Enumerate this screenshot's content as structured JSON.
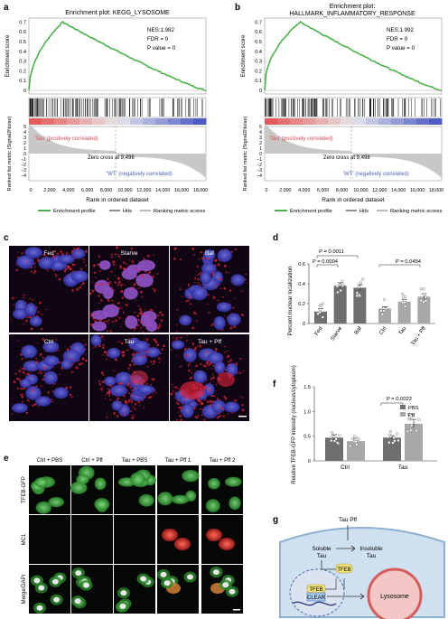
{
  "panel_a": {
    "letter": "a",
    "title": "Enrichment plot: KEGG_LYSOSOME",
    "stats": [
      "NES:1.982",
      "FDR = 0",
      "P value = 0"
    ],
    "ylabel_top": "Enrichment score",
    "ylabel_bottom": "Ranked list metric (Signal2Noise)",
    "yticks_top": [
      "0.7",
      "0.6",
      "0.5",
      "0.4",
      "0.3",
      "0.2",
      "0.1",
      "0"
    ],
    "yticks_bottom": [
      "5",
      "4",
      "3",
      "2",
      "1",
      "0",
      "−1",
      "−2",
      "−3",
      "−4"
    ],
    "pos_label": "'Tau' (positively correlated)",
    "neg_label": "'WT' (negatively correlated)",
    "zero_cross": "Zero cross at 9,498",
    "xticks": [
      "0",
      "2,000",
      "4,000",
      "6,000",
      "8,000",
      "10,000",
      "12,000",
      "14,000",
      "16,000",
      "18,000"
    ],
    "xlabel": "Rank in ordered dataset",
    "legend": [
      "Enrichment profile",
      "Hits",
      "Ranking metric scores"
    ]
  },
  "panel_b": {
    "letter": "b",
    "title_line1": "Enrichment plot:",
    "title_line2": "HALLMARK_INFLAMMATORY_RESPONSE",
    "stats": [
      "NES:1.992",
      "FDR = 0",
      "P value = 0"
    ],
    "ylabel_top": "Enrichment score",
    "ylabel_bottom": "Ranked list metric (Signal2Noise)",
    "yticks_top": [
      "0.7",
      "0.6",
      "0.5",
      "0.4",
      "0.3",
      "0.2",
      "0.1",
      "0"
    ],
    "yticks_bottom": [
      "5",
      "4",
      "3",
      "2",
      "1",
      "0",
      "−1",
      "−2",
      "−3",
      "−4"
    ],
    "pos_label": "'Tau' (positively correlated)",
    "neg_label": "'WT' (negatively correlated)",
    "zero_cross": "Zero cross at 9,498",
    "xticks": [
      "0",
      "2,000",
      "4,000",
      "6,000",
      "8,000",
      "10,000",
      "12,000",
      "14,000",
      "16,000",
      "18,000"
    ],
    "xlabel": "Rank in ordered dataset",
    "legend": [
      "Enrichment profile",
      "Hits",
      "Ranking metric scores"
    ]
  },
  "panel_c": {
    "letter": "c",
    "labels": [
      "Fed",
      "Starve",
      "Baf",
      "Ctrl",
      "Tau",
      "Tau + Pff"
    ]
  },
  "panel_d": {
    "letter": "d",
    "ylabel": "Percent nuclear localization",
    "pvals": [
      "P = 0.0011",
      "P = 0.0004",
      "P = 0.0454"
    ],
    "colors": {
      "dark": "#6f6f6f",
      "light": "#a8a8a8"
    }
  },
  "panel_e": {
    "letter": "e",
    "columns": [
      "Ctrl + PBS",
      "Ctrl + Pff",
      "Tau + PBS",
      "Tau + Pff 1",
      "Tau + Pff 2"
    ],
    "rows": [
      "TFEB-GFP",
      "MC1",
      "Merge/DAPI"
    ]
  },
  "panel_f": {
    "letter": "f",
    "ylabel": "Relative TFEB-GFP intensity (nucleus/cytoplasm)",
    "pval": "P = 0.0022",
    "legend": [
      "PBS",
      "Pff"
    ],
    "colors": {
      "PBS": "#6f6f6f",
      "Pff": "#a8a8a8"
    }
  },
  "panel_g": {
    "letter": "g",
    "labels": {
      "tau_pff": "Tau Pff",
      "soluble": "Soluble",
      "soluble2": "Tau",
      "insoluble": "Insoluble",
      "insoluble2": "Tau",
      "tfeb_cyto": "TFEB",
      "tfeb_nuc": "TFEB",
      "clear": "CLEAR",
      "lysosome": "Lysosome"
    }
  },
  "chart_data": [
    {
      "type": "bar",
      "categories": [
        "Fed",
        "Starve",
        "Baf",
        "Ctrl",
        "Tau",
        "Tau + Pff"
      ],
      "values": [
        0.12,
        0.38,
        0.36,
        0.15,
        0.22,
        0.27
      ],
      "errors": [
        0.03,
        0.03,
        0.03,
        0.02,
        0.02,
        0.03
      ],
      "ylim": [
        0,
        0.6
      ],
      "yticks": [
        "0",
        "0.2",
        "0.4",
        "0.6"
      ],
      "ylabel": "Percent nuclear localization"
    },
    {
      "type": "bar",
      "categories": [
        "Ctrl",
        "Tau"
      ],
      "series": [
        {
          "name": "PBS",
          "values": [
            0.47,
            0.47
          ],
          "errors": [
            0.06,
            0.04
          ]
        },
        {
          "name": "Pff",
          "values": [
            0.4,
            0.75
          ],
          "errors": [
            0.03,
            0.09
          ]
        }
      ],
      "ylim": [
        0,
        1.5
      ],
      "yticks": [
        "0",
        "0.5",
        "1.0",
        "1.5"
      ],
      "ylabel": "Relative TFEB-GFP intensity (nucleus/cytoplasm)"
    }
  ]
}
